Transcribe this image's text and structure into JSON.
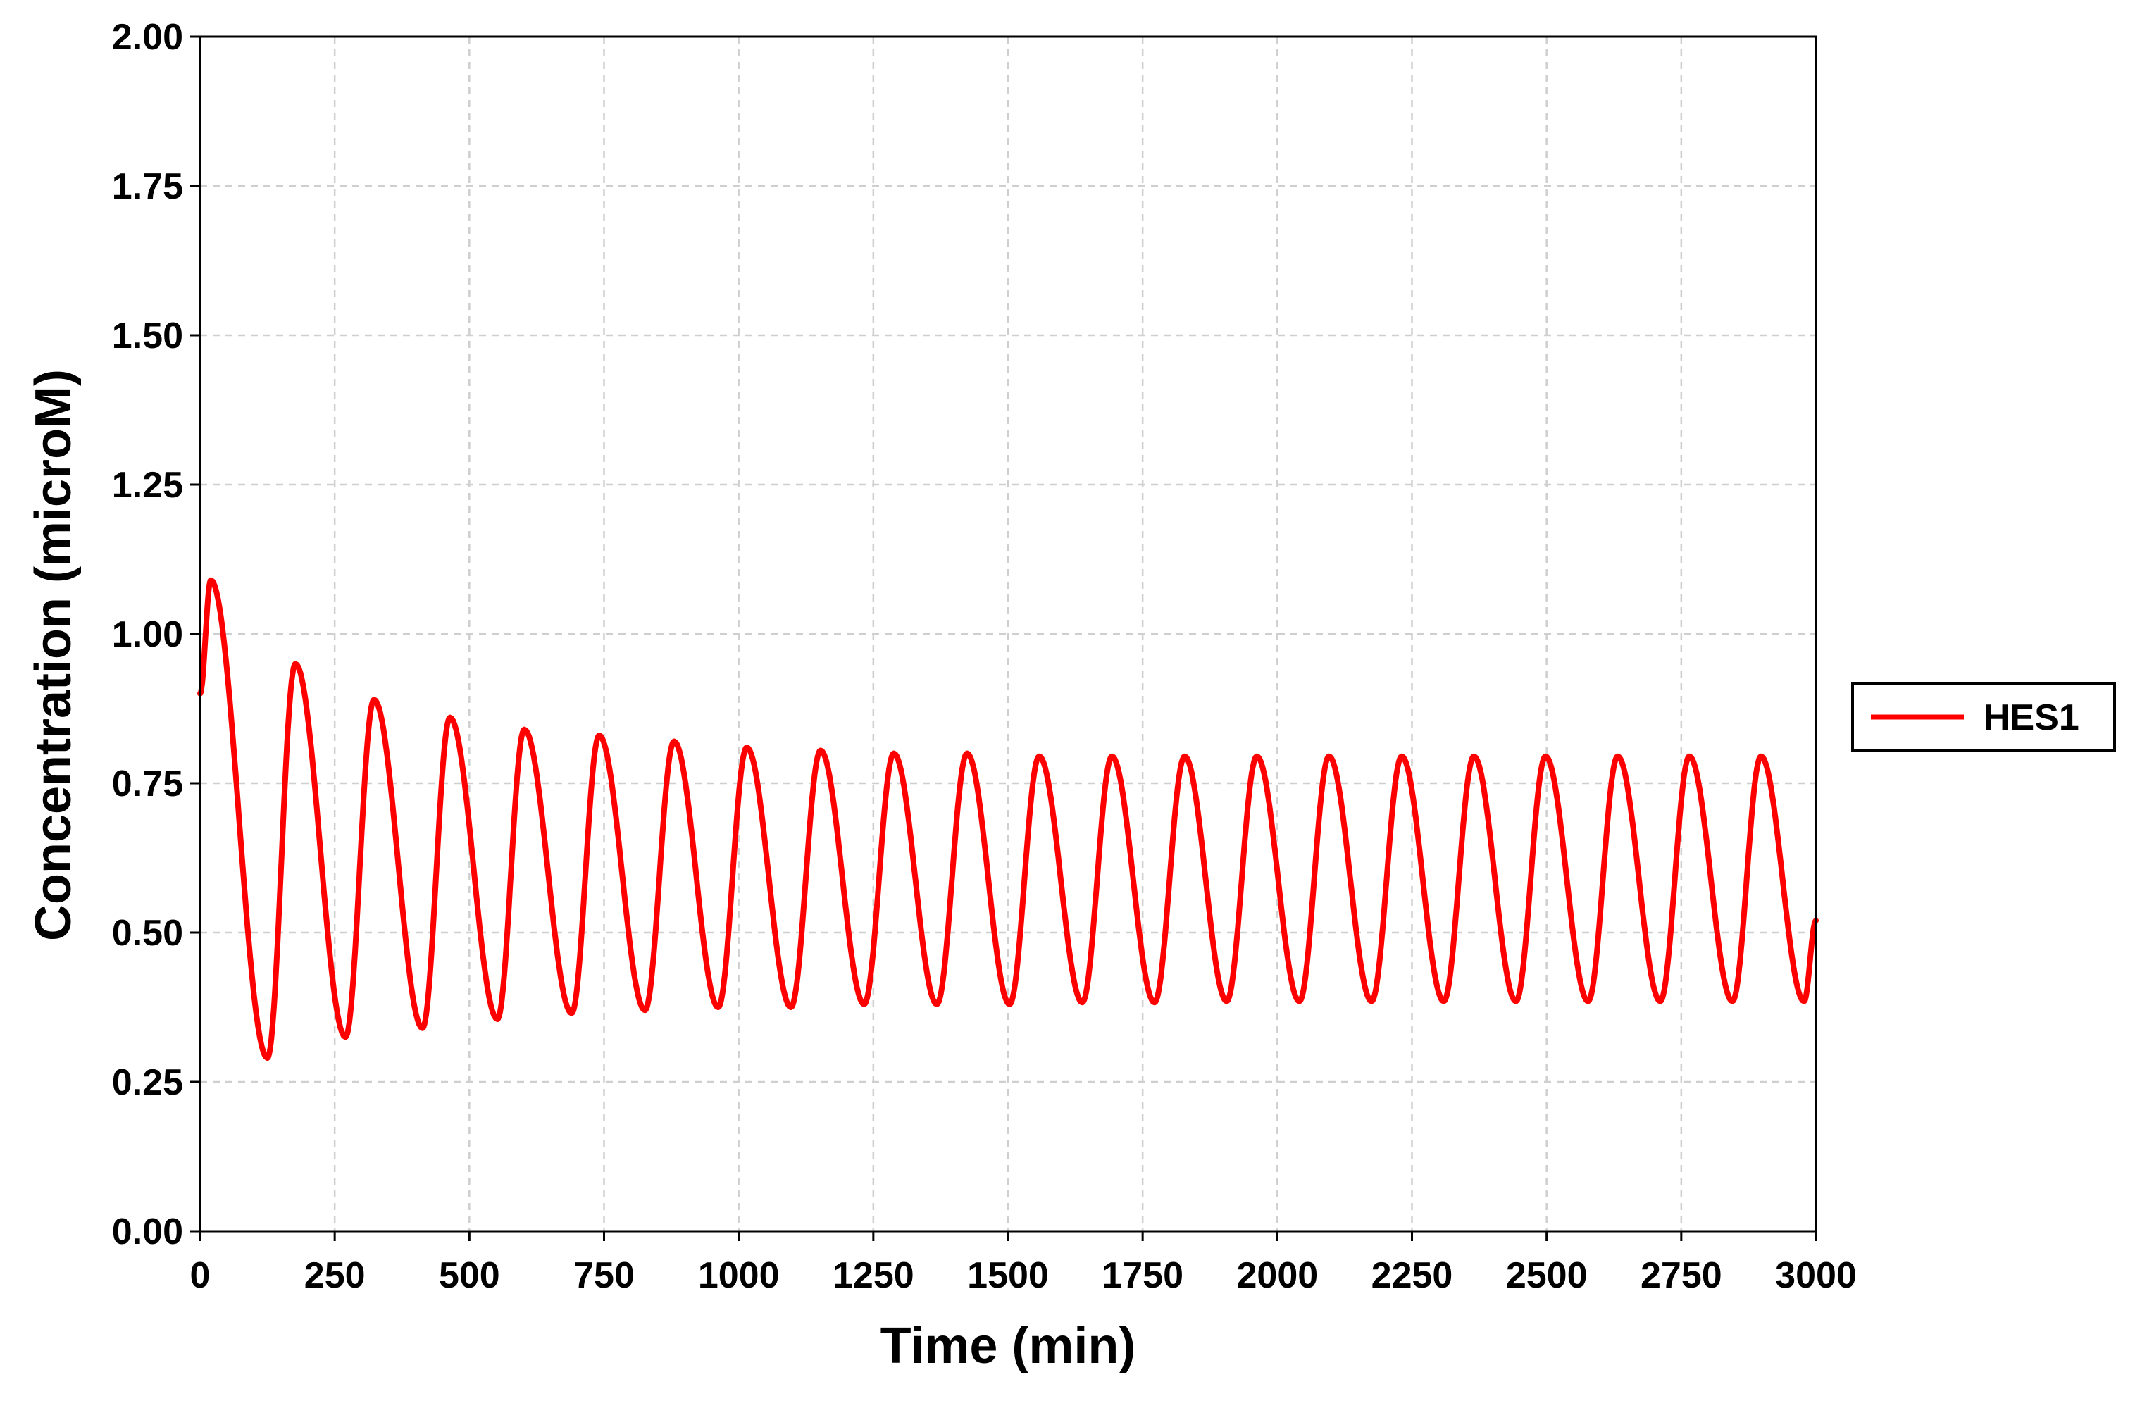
{
  "chart_data": {
    "type": "line",
    "title": "",
    "xlabel": "Time (min)",
    "ylabel": "Concentration (microM)",
    "xlim": [
      0,
      3000
    ],
    "ylim": [
      0,
      2
    ],
    "x_ticks": [
      "0",
      "250",
      "500",
      "750",
      "1000",
      "1250",
      "1500",
      "1750",
      "2000",
      "2250",
      "2500",
      "2750",
      "3000"
    ],
    "y_ticks": [
      "0.00",
      "0.25",
      "0.50",
      "0.75",
      "1.00",
      "1.25",
      "1.50",
      "1.75",
      "2.00"
    ],
    "grid": true,
    "legend_position": "right",
    "series": [
      {
        "name": "HES1",
        "color": "#ff0000",
        "peaks": [
          [
            20,
            1.09
          ],
          [
            177,
            0.95
          ],
          [
            323,
            0.89
          ],
          [
            464,
            0.86
          ],
          [
            602,
            0.84
          ],
          [
            741,
            0.83
          ],
          [
            880,
            0.82
          ],
          [
            1015,
            0.81
          ],
          [
            1152,
            0.805
          ],
          [
            1288,
            0.8
          ],
          [
            1424,
            0.8
          ],
          [
            1558,
            0.795
          ],
          [
            1693,
            0.795
          ],
          [
            1828,
            0.795
          ],
          [
            1962,
            0.795
          ],
          [
            2096,
            0.795
          ],
          [
            2231,
            0.795
          ],
          [
            2365,
            0.795
          ],
          [
            2498,
            0.795
          ],
          [
            2632,
            0.795
          ],
          [
            2765,
            0.795
          ],
          [
            2898,
            0.795
          ]
        ],
        "troughs": [
          [
            125,
            0.29
          ],
          [
            270,
            0.325
          ],
          [
            413,
            0.34
          ],
          [
            552,
            0.355
          ],
          [
            690,
            0.365
          ],
          [
            826,
            0.37
          ],
          [
            962,
            0.375
          ],
          [
            1097,
            0.375
          ],
          [
            1233,
            0.38
          ],
          [
            1368,
            0.38
          ],
          [
            1503,
            0.38
          ],
          [
            1638,
            0.383
          ],
          [
            1772,
            0.383
          ],
          [
            1906,
            0.385
          ],
          [
            2041,
            0.385
          ],
          [
            2175,
            0.385
          ],
          [
            2309,
            0.385
          ],
          [
            2443,
            0.385
          ],
          [
            2577,
            0.385
          ],
          [
            2711,
            0.385
          ],
          [
            2845,
            0.385
          ],
          [
            2978,
            0.385
          ]
        ],
        "start": [
          0,
          0.9
        ],
        "end": [
          3000,
          0.52
        ]
      }
    ]
  }
}
